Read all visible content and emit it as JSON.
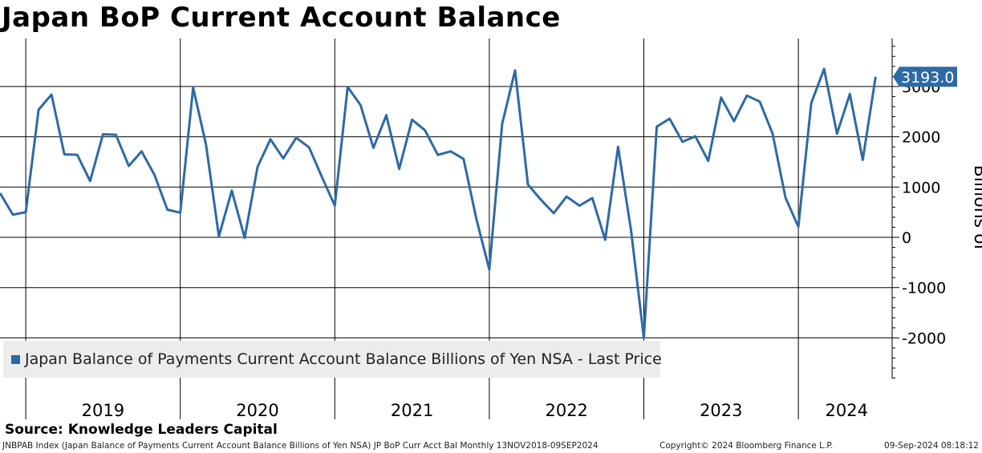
{
  "chart_data": {
    "type": "line",
    "title": "Japan BoP Current Account Balance",
    "ylabel": "Billions of",
    "xlabel": "",
    "ylim": [
      -2800,
      3900
    ],
    "yticks": [
      3000,
      2000,
      1000,
      0,
      -1000,
      -2000
    ],
    "ytick_labels": [
      "3000",
      "2000",
      "1000",
      "0",
      "-1000",
      "-2000"
    ],
    "year_labels": [
      "2019",
      "2020",
      "2021",
      "2022",
      "2023",
      "2024"
    ],
    "x_start": "2018-11",
    "series": [
      {
        "name": "Japan Balance of Payments Current Account Balance Billions of Yen NSA - Last Price",
        "color": "#2d6aa6",
        "last_value_label": "3193.0",
        "values": [
          880,
          450,
          500,
          2540,
          2840,
          1650,
          1640,
          1120,
          2050,
          2040,
          1420,
          1710,
          1240,
          550,
          490,
          2980,
          1840,
          20,
          930,
          -10,
          1400,
          1950,
          1570,
          1980,
          1790,
          1200,
          630,
          2990,
          2630,
          1780,
          2430,
          1360,
          2340,
          2130,
          1640,
          1710,
          1560,
          360,
          -640,
          2260,
          3320,
          1050,
          750,
          480,
          810,
          630,
          780,
          -50,
          1800,
          150,
          -2000,
          2200,
          2360,
          1900,
          2010,
          1520,
          2780,
          2310,
          2820,
          2700,
          2060,
          790,
          210,
          2670,
          3350,
          2060,
          2850,
          1540,
          3193
        ]
      }
    ],
    "legend": {
      "position": "bottom-left",
      "label": "Japan Balance of Payments Current Account Balance Billions of Yen NSA - Last Price"
    }
  },
  "footer": {
    "source": "Source: Knowledge Leaders Capital",
    "index_line": "JNBPAB Index (Japan Balance of Payments Current Account Balance Billions of Yen NSA) JP BoP Curr Acct Bal  Monthly 13NOV2018-09SEP2024",
    "copyright": "Copyright© 2024 Bloomberg Finance L.P.",
    "timestamp": "09-Sep-2024 08:18:12"
  }
}
